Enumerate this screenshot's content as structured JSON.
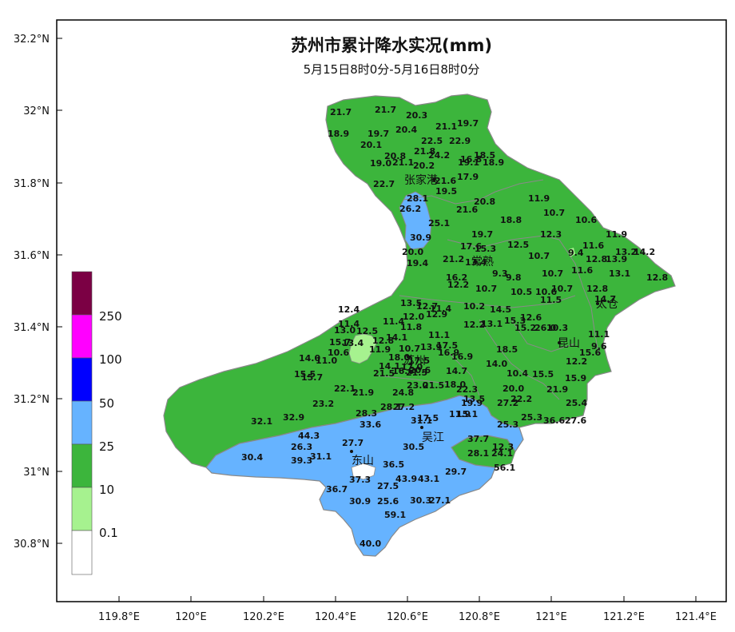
{
  "title": "苏州市累计降水实况(mm)",
  "subtitle": "5月15日8时0分-5月16日8时0分",
  "lat_labels": [
    "32.2°N",
    "32°N",
    "31.8°N",
    "31.6°N",
    "31.4°N",
    "31.2°N",
    "31°N",
    "30.8°N"
  ],
  "lon_labels": [
    "119.8°E",
    "120°E",
    "120.2°E",
    "120.4°E",
    "120.6°E",
    "120.8°E",
    "121°E",
    "121.2°E",
    "121.4°E"
  ],
  "cities": [
    "张家港",
    "常熟",
    "太仓",
    "昆山",
    "苏州",
    "吴江",
    "东山"
  ],
  "legend": {
    "labels": [
      "250",
      "100",
      "50",
      "25",
      "10",
      "0.1"
    ],
    "colors": [
      "#7b0044",
      "#ff00ff",
      "#0000ff",
      "#66b3ff",
      "#3cb53c",
      "#a6f28f",
      "#ffffff"
    ]
  },
  "colors": {
    "green": "#3cb53c",
    "blue": "#66b3ff",
    "light": "#a6f28f",
    "border": "#888888"
  },
  "values": [
    "21.7",
    "21.7",
    "20.3",
    "18.9",
    "19.7",
    "20.4",
    "21.1",
    "19.7",
    "20.1",
    "22.5",
    "22.9",
    "21.8",
    "24.2",
    "16.8",
    "18.5",
    "20.8",
    "19.0",
    "21.1",
    "20.2",
    "19.1",
    "18.9",
    "22.7",
    "21.6",
    "17.9",
    "19.5",
    "28.1",
    "20.8",
    "11.9",
    "26.2",
    "21.6",
    "10.7",
    "25.1",
    "18.8",
    "10.6",
    "30.9",
    "19.7",
    "12.3",
    "11.9",
    "17.6",
    "15.3",
    "12.5",
    "11.6",
    "20.0",
    "13.2",
    "14.2",
    "19.4",
    "21.2",
    "13.4",
    "10.7",
    "9.4",
    "12.8",
    "13.9",
    "16.2",
    "9.3",
    "9.8",
    "10.7",
    "11.6",
    "13.1",
    "12.8",
    "12.2",
    "10.7",
    "10.5",
    "10.6",
    "10.7",
    "12.8",
    "11.5",
    "14.7",
    "12.4",
    "13.5",
    "12.7",
    "11.4",
    "10.2",
    "14.5",
    "12.6",
    "11.4",
    "11.4",
    "11.8",
    "12.9",
    "12.0",
    "12.2",
    "13.1",
    "15.3",
    "15.2",
    "26.0",
    "10.3",
    "13.0",
    "12.5",
    "15.7",
    "13.4",
    "14.1",
    "11.1",
    "11.9",
    "10.7",
    "13.9",
    "17.5",
    "11.1",
    "12.8",
    "10.6",
    "18.0",
    "16.9",
    "15.6",
    "14.0",
    "11.0",
    "17.5",
    "16.9",
    "18.5",
    "9.6",
    "12.2",
    "14.1",
    "17.0",
    "14.0",
    "15.5",
    "21.5",
    "16.6",
    "20.6",
    "14.7",
    "10.4",
    "15.5",
    "15.9",
    "15.7",
    "21.5",
    "22.1",
    "21.9",
    "24.8",
    "23.0",
    "21.5",
    "18.0",
    "22.3",
    "20.0",
    "21.9",
    "22.2",
    "23.2",
    "28.3",
    "28.1",
    "27.2",
    "13.5",
    "19.9",
    "27.2",
    "25.4",
    "32.1",
    "32.9",
    "33.6",
    "31.1",
    "17.5",
    "11.9",
    "15.1",
    "25.3",
    "36.6",
    "27.6",
    "44.3",
    "27.7",
    "25.3",
    "30.5",
    "37.7",
    "12.3",
    "26.3",
    "31.1",
    "28.1",
    "24.1",
    "39.3",
    "30.4",
    "56.1",
    "36.5",
    "29.7",
    "37.3",
    "43.9",
    "43.1",
    "36.7",
    "27.5",
    "30.9",
    "25.6",
    "30.3",
    "27.1",
    "59.1",
    "40.0"
  ]
}
